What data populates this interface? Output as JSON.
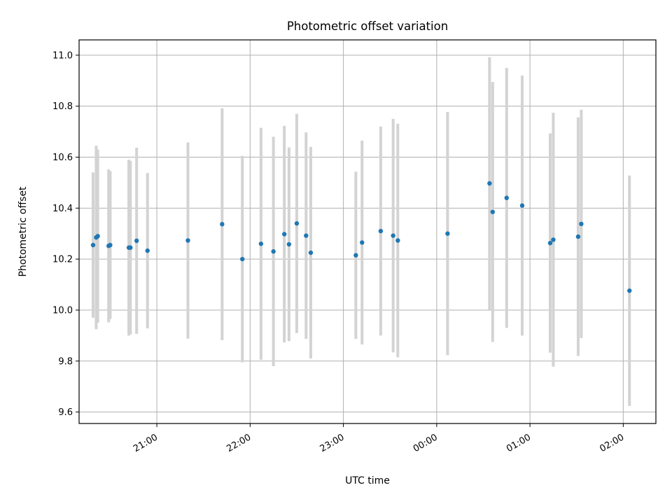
{
  "chart_data": {
    "type": "scatter",
    "title": "Photometric offset variation",
    "xlabel": "UTC time",
    "ylabel": "Photometric offset",
    "x_unit": "UTC time (HH:MM, observation spans midnight)",
    "xlim": [
      "20:10",
      "02:21"
    ],
    "ylim": [
      9.555,
      11.06
    ],
    "grid": true,
    "x_ticks": [
      "21:00",
      "22:00",
      "23:00",
      "00:00",
      "01:00",
      "02:00"
    ],
    "y_ticks": [
      "9.6",
      "9.8",
      "10.0",
      "10.2",
      "10.4",
      "10.6",
      "10.8",
      "11.0"
    ],
    "colors": {
      "point": "#1f77b4",
      "errorbar": "#d3d3d3",
      "grid": "#b0b0b0"
    },
    "series": [
      {
        "points": [
          {
            "x": "20:19",
            "y": 10.255,
            "err": 0.285
          },
          {
            "x": "20:21",
            "y": 10.285,
            "err": 0.36
          },
          {
            "x": "20:22",
            "y": 10.29,
            "err": 0.34
          },
          {
            "x": "20:29",
            "y": 10.252,
            "err": 0.3
          },
          {
            "x": "20:30",
            "y": 10.255,
            "err": 0.29
          },
          {
            "x": "20:42",
            "y": 10.245,
            "err": 0.345
          },
          {
            "x": "20:43",
            "y": 10.245,
            "err": 0.34
          },
          {
            "x": "20:47",
            "y": 10.272,
            "err": 0.365
          },
          {
            "x": "20:54",
            "y": 10.233,
            "err": 0.305
          },
          {
            "x": "21:20",
            "y": 10.273,
            "err": 0.385
          },
          {
            "x": "21:42",
            "y": 10.337,
            "err": 0.455
          },
          {
            "x": "21:55",
            "y": 10.2,
            "err": 0.405
          },
          {
            "x": "22:07",
            "y": 10.26,
            "err": 0.455
          },
          {
            "x": "22:15",
            "y": 10.23,
            "err": 0.45
          },
          {
            "x": "22:22",
            "y": 10.298,
            "err": 0.425
          },
          {
            "x": "22:25",
            "y": 10.258,
            "err": 0.38
          },
          {
            "x": "22:30",
            "y": 10.34,
            "err": 0.43
          },
          {
            "x": "22:36",
            "y": 10.292,
            "err": 0.405
          },
          {
            "x": "22:39",
            "y": 10.225,
            "err": 0.415
          },
          {
            "x": "23:08",
            "y": 10.215,
            "err": 0.328
          },
          {
            "x": "23:12",
            "y": 10.265,
            "err": 0.4
          },
          {
            "x": "23:24",
            "y": 10.31,
            "err": 0.41
          },
          {
            "x": "23:32",
            "y": 10.292,
            "err": 0.458
          },
          {
            "x": "23:35",
            "y": 10.273,
            "err": 0.458
          },
          {
            "x": "00:07",
            "y": 10.3,
            "err": 0.477
          },
          {
            "x": "00:34",
            "y": 10.497,
            "err": 0.495
          },
          {
            "x": "00:36",
            "y": 10.385,
            "err": 0.51
          },
          {
            "x": "00:45",
            "y": 10.44,
            "err": 0.51
          },
          {
            "x": "00:55",
            "y": 10.41,
            "err": 0.51
          },
          {
            "x": "01:13",
            "y": 10.263,
            "err": 0.43
          },
          {
            "x": "01:15",
            "y": 10.276,
            "err": 0.498
          },
          {
            "x": "01:31",
            "y": 10.288,
            "err": 0.468
          },
          {
            "x": "01:33",
            "y": 10.338,
            "err": 0.448
          },
          {
            "x": "02:04",
            "y": 10.076,
            "err": 0.452
          }
        ]
      }
    ]
  }
}
